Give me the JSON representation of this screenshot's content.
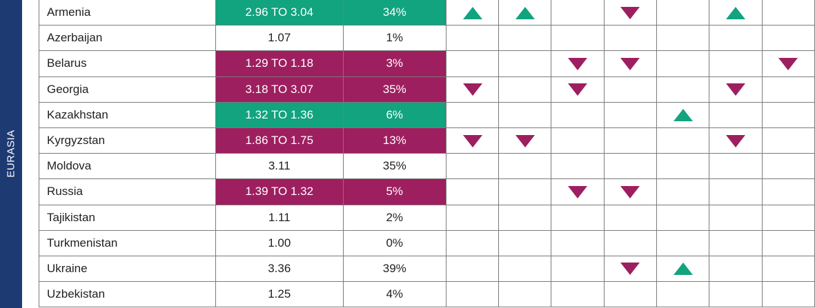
{
  "region": {
    "label": "EURASIA"
  },
  "colors": {
    "improve": "#12a37f",
    "decline": "#9e1f5f",
    "region_bar": "#1e3a73",
    "value_text": "#1f5e8f"
  },
  "rows": [
    {
      "country": "Armenia",
      "score": "2.96 TO 3.04",
      "percent": "34%",
      "trend": "up",
      "indicators": [
        "up",
        "up",
        "",
        "down",
        "",
        "up",
        ""
      ]
    },
    {
      "country": "Azerbaijan",
      "score": "1.07",
      "percent": "1%",
      "trend": "",
      "indicators": [
        "",
        "",
        "",
        "",
        "",
        "",
        ""
      ]
    },
    {
      "country": "Belarus",
      "score": "1.29 TO 1.18",
      "percent": "3%",
      "trend": "down",
      "indicators": [
        "",
        "",
        "down",
        "down",
        "",
        "",
        "down"
      ]
    },
    {
      "country": "Georgia",
      "score": "3.18 TO 3.07",
      "percent": "35%",
      "trend": "down",
      "indicators": [
        "down",
        "",
        "down",
        "",
        "",
        "down",
        ""
      ]
    },
    {
      "country": "Kazakhstan",
      "score": "1.32 TO 1.36",
      "percent": "6%",
      "trend": "up",
      "indicators": [
        "",
        "",
        "",
        "",
        "up",
        "",
        ""
      ]
    },
    {
      "country": "Kyrgyzstan",
      "score": "1.86 TO 1.75",
      "percent": "13%",
      "trend": "down",
      "indicators": [
        "down",
        "down",
        "",
        "",
        "",
        "down",
        ""
      ]
    },
    {
      "country": "Moldova",
      "score": "3.11",
      "percent": "35%",
      "trend": "",
      "indicators": [
        "",
        "",
        "",
        "",
        "",
        "",
        ""
      ]
    },
    {
      "country": "Russia",
      "score": "1.39 TO 1.32",
      "percent": "5%",
      "trend": "down",
      "indicators": [
        "",
        "",
        "down",
        "down",
        "",
        "",
        ""
      ]
    },
    {
      "country": "Tajikistan",
      "score": "1.11",
      "percent": "2%",
      "trend": "",
      "indicators": [
        "",
        "",
        "",
        "",
        "",
        "",
        ""
      ]
    },
    {
      "country": "Turkmenistan",
      "score": "1.00",
      "percent": "0%",
      "trend": "",
      "indicators": [
        "",
        "",
        "",
        "",
        "",
        "",
        ""
      ]
    },
    {
      "country": "Ukraine",
      "score": "3.36",
      "percent": "39%",
      "trend": "",
      "indicators": [
        "",
        "",
        "",
        "down",
        "up",
        "",
        ""
      ]
    },
    {
      "country": "Uzbekistan",
      "score": "1.25",
      "percent": "4%",
      "trend": "",
      "indicators": [
        "",
        "",
        "",
        "",
        "",
        "",
        ""
      ]
    }
  ]
}
